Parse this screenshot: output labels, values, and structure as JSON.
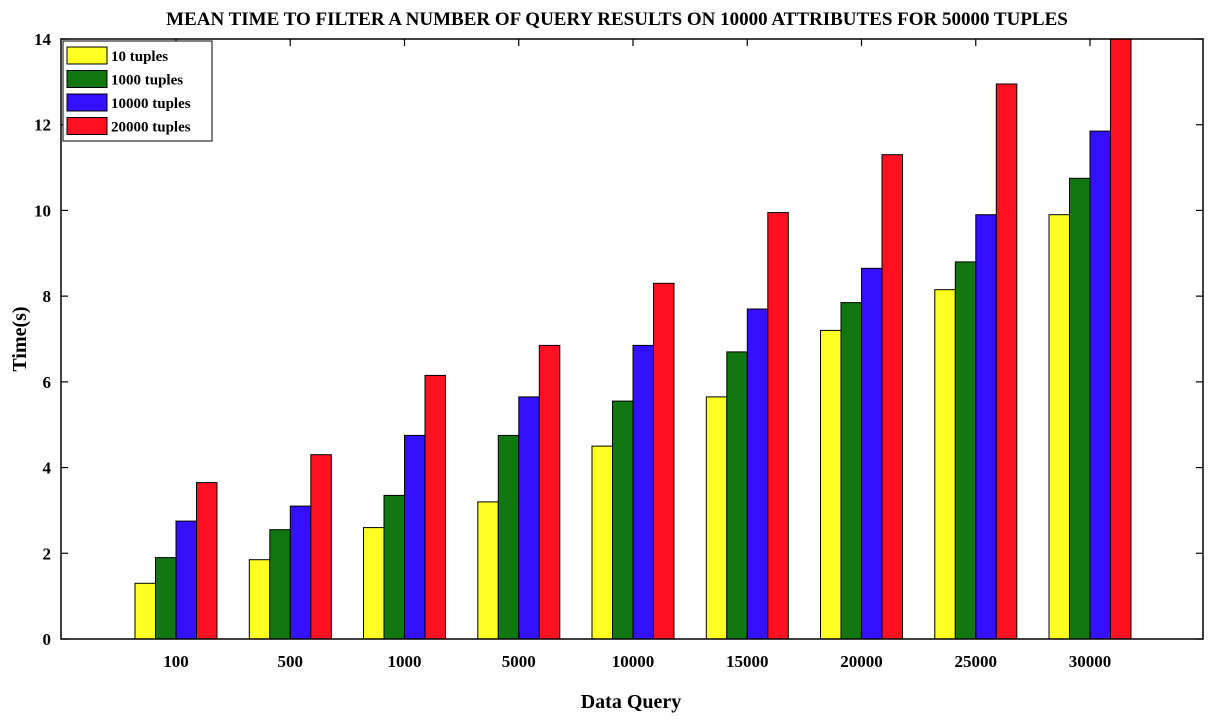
{
  "chart_data": {
    "type": "bar",
    "title": "MEAN TIME TO FILTER A NUMBER OF QUERY RESULTS ON 10000 ATTRIBUTES FOR 50000 TUPLES",
    "xlabel": "Data Query",
    "ylabel": "Time(s)",
    "categories": [
      "100",
      "500",
      "1000",
      "5000",
      "10000",
      "15000",
      "20000",
      "25000",
      "30000"
    ],
    "ylim": [
      0,
      14
    ],
    "yticks": [
      0,
      2,
      4,
      6,
      8,
      10,
      12,
      14
    ],
    "grid": false,
    "legend_position": "top-left",
    "series": [
      {
        "name": "10 tuples",
        "color": "#ffff22",
        "values": [
          1.3,
          1.85,
          2.6,
          3.2,
          4.5,
          5.65,
          7.2,
          8.15,
          9.9
        ]
      },
      {
        "name": "1000 tuples",
        "color": "#117711",
        "values": [
          1.9,
          2.55,
          3.35,
          4.75,
          5.55,
          6.7,
          7.85,
          8.8,
          10.75
        ]
      },
      {
        "name": "10000 tuples",
        "color": "#3311ff",
        "values": [
          2.75,
          3.1,
          4.75,
          5.65,
          6.85,
          7.7,
          8.65,
          9.9,
          11.85
        ]
      },
      {
        "name": "20000 tuples",
        "color": "#ff1122",
        "values": [
          3.65,
          4.3,
          6.15,
          6.85,
          8.3,
          9.95,
          11.3,
          12.95,
          14.0
        ]
      }
    ]
  }
}
